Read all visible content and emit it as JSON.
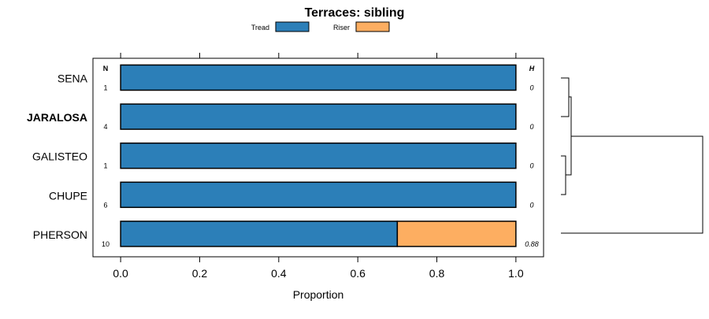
{
  "chart_data": {
    "type": "bar",
    "stacked": true,
    "orientation": "horizontal",
    "title": "Terraces: sibling",
    "xlabel": "Proportion",
    "xlim": [
      -0.07,
      1.07
    ],
    "xticks": [
      0.0,
      0.2,
      0.4,
      0.6,
      0.8,
      1.0
    ],
    "xtick_labels": [
      "0.0",
      "0.2",
      "0.4",
      "0.6",
      "0.8",
      "1.0"
    ],
    "legend": {
      "placement": "top-center"
    },
    "n_header": "N",
    "h_header": "H",
    "categories": [
      "SENA",
      "JARALOSA",
      "GALISTEO",
      "CHUPE",
      "PHERSON"
    ],
    "bold_category": "JARALOSA",
    "n_values": [
      "1",
      "4",
      "1",
      "6",
      "10"
    ],
    "h_values": [
      "0",
      "0",
      "0",
      "0",
      "0.88"
    ],
    "series": [
      {
        "name": "Tread",
        "color": "#2c7fb8",
        "values": [
          1.0,
          1.0,
          1.0,
          1.0,
          0.7
        ]
      },
      {
        "name": "Riser",
        "color": "#fdae61",
        "values": [
          0.0,
          0.0,
          0.0,
          0.0,
          0.3
        ]
      }
    ]
  }
}
